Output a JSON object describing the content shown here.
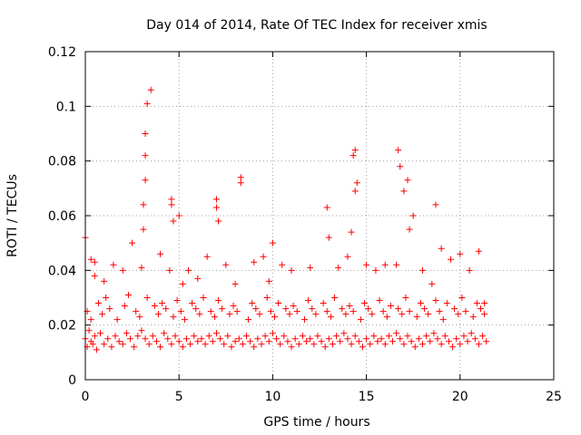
{
  "chart_data": {
    "type": "scatter",
    "title": "Day 014 of 2014, Rate Of TEC Index for receiver xmis",
    "xlabel": "GPS time / hours",
    "ylabel": "ROTI / TECUs",
    "xlim": [
      0,
      25
    ],
    "ylim": [
      0,
      0.12
    ],
    "grid": true,
    "marker": "+",
    "marker_color": "#ff0000",
    "x_ticks": [
      0,
      5,
      10,
      15,
      20,
      25
    ],
    "x_tick_labels": [
      "0",
      "5",
      "10",
      "15",
      "20",
      "25"
    ],
    "y_ticks": [
      0,
      0.02,
      0.04,
      0.06,
      0.08,
      0.1,
      0.12
    ],
    "y_tick_labels": [
      "0",
      "0.02",
      "0.04",
      "0.06",
      "0.08",
      "0.1",
      "0.12"
    ],
    "series": [
      {
        "name": "ROTI",
        "x": [
          0.0,
          0.1,
          0.2,
          0.3,
          0.4,
          0.5,
          0.6,
          0.8,
          1.0,
          1.2,
          1.4,
          1.6,
          1.8,
          2.0,
          2.2,
          2.4,
          2.6,
          2.8,
          3.0,
          3.2,
          3.4,
          3.6,
          3.8,
          4.0,
          4.2,
          4.4,
          4.6,
          4.8,
          5.0,
          5.2,
          5.4,
          5.6,
          5.8,
          6.0,
          6.2,
          6.4,
          6.6,
          6.8,
          7.0,
          7.2,
          7.4,
          7.6,
          7.8,
          8.0,
          8.2,
          8.4,
          8.6,
          8.8,
          9.0,
          9.2,
          9.4,
          9.6,
          9.8,
          10.0,
          10.2,
          10.4,
          10.6,
          10.8,
          11.0,
          11.2,
          11.4,
          11.6,
          11.8,
          12.0,
          12.2,
          12.4,
          12.6,
          12.8,
          13.0,
          13.2,
          13.4,
          13.6,
          13.8,
          14.0,
          14.2,
          14.4,
          14.6,
          14.8,
          15.0,
          15.2,
          15.4,
          15.6,
          15.8,
          16.0,
          16.2,
          16.4,
          16.6,
          16.8,
          17.0,
          17.2,
          17.4,
          17.6,
          17.8,
          18.0,
          18.2,
          18.4,
          18.6,
          18.8,
          19.0,
          19.2,
          19.4,
          19.6,
          19.8,
          20.0,
          20.2,
          20.4,
          20.6,
          20.8,
          21.0,
          21.2,
          21.4,
          0.0,
          0.3,
          0.5,
          0.5,
          1.0,
          1.5,
          2.0,
          2.5,
          3.0,
          3.1,
          3.1,
          3.2,
          3.2,
          3.2,
          3.3,
          3.5,
          4.0,
          4.5,
          4.6,
          4.6,
          4.7,
          5.0,
          5.2,
          5.5,
          6.0,
          6.5,
          7.0,
          7.0,
          7.1,
          7.5,
          8.0,
          8.3,
          8.3,
          9.0,
          9.5,
          9.8,
          10.0,
          10.5,
          11.0,
          12.0,
          12.9,
          13.0,
          13.5,
          14.0,
          14.2,
          14.3,
          14.4,
          14.4,
          14.5,
          15.0,
          15.5,
          16.0,
          16.6,
          16.7,
          16.8,
          17.0,
          17.2,
          17.3,
          17.5,
          18.0,
          18.5,
          18.7,
          19.0,
          19.5,
          20.0,
          20.5,
          21.0,
          21.3,
          0.1,
          0.3,
          0.7,
          0.9,
          1.1,
          1.3,
          1.7,
          2.1,
          2.3,
          2.7,
          2.9,
          3.3,
          3.7,
          3.9,
          4.1,
          4.3,
          4.7,
          4.9,
          5.1,
          5.3,
          5.7,
          5.9,
          6.1,
          6.3,
          6.7,
          6.9,
          7.1,
          7.3,
          7.7,
          7.9,
          8.1,
          8.7,
          8.9,
          9.1,
          9.3,
          9.7,
          9.9,
          10.1,
          10.3,
          10.7,
          10.9,
          11.1,
          11.3,
          11.7,
          11.9,
          12.1,
          12.3,
          12.7,
          12.9,
          13.1,
          13.3,
          13.7,
          13.9,
          14.1,
          14.3,
          14.7,
          14.9,
          15.1,
          15.3,
          15.7,
          15.9,
          16.1,
          16.3,
          16.7,
          16.9,
          17.1,
          17.3,
          17.7,
          17.9,
          18.1,
          18.3,
          18.7,
          18.9,
          19.1,
          19.3,
          19.7,
          19.9,
          20.1,
          20.3,
          20.7,
          20.9,
          21.1,
          21.3
        ],
        "y": [
          0.015,
          0.012,
          0.018,
          0.014,
          0.013,
          0.016,
          0.011,
          0.017,
          0.013,
          0.015,
          0.012,
          0.016,
          0.014,
          0.013,
          0.017,
          0.015,
          0.012,
          0.016,
          0.018,
          0.015,
          0.013,
          0.016,
          0.014,
          0.012,
          0.017,
          0.015,
          0.013,
          0.016,
          0.014,
          0.012,
          0.015,
          0.013,
          0.016,
          0.014,
          0.015,
          0.013,
          0.016,
          0.014,
          0.017,
          0.015,
          0.013,
          0.016,
          0.012,
          0.014,
          0.015,
          0.013,
          0.016,
          0.014,
          0.012,
          0.015,
          0.013,
          0.016,
          0.014,
          0.017,
          0.015,
          0.013,
          0.016,
          0.014,
          0.012,
          0.015,
          0.013,
          0.016,
          0.014,
          0.015,
          0.013,
          0.016,
          0.014,
          0.012,
          0.015,
          0.013,
          0.016,
          0.014,
          0.017,
          0.015,
          0.013,
          0.016,
          0.014,
          0.012,
          0.015,
          0.013,
          0.016,
          0.014,
          0.015,
          0.013,
          0.016,
          0.014,
          0.017,
          0.015,
          0.013,
          0.016,
          0.014,
          0.012,
          0.015,
          0.013,
          0.016,
          0.014,
          0.017,
          0.015,
          0.013,
          0.016,
          0.014,
          0.012,
          0.015,
          0.013,
          0.016,
          0.014,
          0.017,
          0.015,
          0.013,
          0.016,
          0.014,
          0.052,
          0.044,
          0.038,
          0.043,
          0.036,
          0.042,
          0.04,
          0.05,
          0.041,
          0.055,
          0.064,
          0.073,
          0.082,
          0.09,
          0.101,
          0.106,
          0.046,
          0.04,
          0.064,
          0.066,
          0.058,
          0.06,
          0.035,
          0.04,
          0.037,
          0.045,
          0.063,
          0.066,
          0.058,
          0.042,
          0.035,
          0.074,
          0.072,
          0.043,
          0.045,
          0.036,
          0.05,
          0.042,
          0.04,
          0.041,
          0.063,
          0.052,
          0.041,
          0.045,
          0.054,
          0.082,
          0.084,
          0.069,
          0.072,
          0.042,
          0.04,
          0.042,
          0.042,
          0.084,
          0.078,
          0.069,
          0.073,
          0.055,
          0.06,
          0.04,
          0.035,
          0.064,
          0.048,
          0.044,
          0.046,
          0.04,
          0.047,
          0.028,
          0.025,
          0.022,
          0.028,
          0.024,
          0.03,
          0.026,
          0.022,
          0.027,
          0.031,
          0.025,
          0.023,
          0.03,
          0.027,
          0.024,
          0.028,
          0.026,
          0.023,
          0.029,
          0.025,
          0.022,
          0.028,
          0.026,
          0.024,
          0.03,
          0.025,
          0.023,
          0.029,
          0.026,
          0.024,
          0.027,
          0.025,
          0.022,
          0.028,
          0.026,
          0.024,
          0.03,
          0.025,
          0.023,
          0.028,
          0.026,
          0.024,
          0.027,
          0.025,
          0.022,
          0.029,
          0.026,
          0.024,
          0.028,
          0.025,
          0.023,
          0.03,
          0.026,
          0.024,
          0.027,
          0.025,
          0.022,
          0.028,
          0.026,
          0.024,
          0.029,
          0.025,
          0.023,
          0.027,
          0.026,
          0.024,
          0.03,
          0.025,
          0.023,
          0.028,
          0.026,
          0.024,
          0.029,
          0.025,
          0.022,
          0.028,
          0.026,
          0.024,
          0.03,
          0.025,
          0.023,
          0.028,
          0.026,
          0.024
        ]
      }
    ]
  }
}
